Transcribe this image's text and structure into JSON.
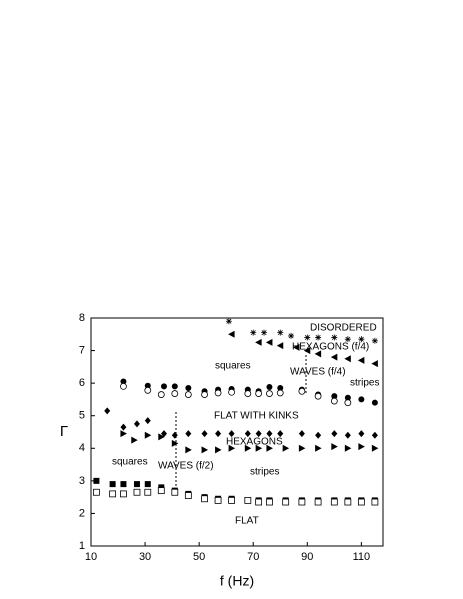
{
  "chart_data": {
    "type": "scatter",
    "x_label": "f (Hz)",
    "y_label": "Γ",
    "xlim": [
      10,
      118
    ],
    "ylim": [
      1,
      8
    ],
    "xticks": [
      10,
      30,
      50,
      70,
      90,
      110
    ],
    "yticks": [
      1,
      2,
      3,
      4,
      5,
      6,
      7,
      8
    ],
    "annotations": [
      "DISORDERED",
      "HEXAGONS (f/4)",
      "squares",
      "WAVES (f/4)",
      "stripes",
      "FLAT WITH KINKS",
      "HEXAGONS",
      "squares",
      "WAVES (f/2)",
      "stripes",
      "FLAT"
    ],
    "series": [
      {
        "marker": "filled-circle",
        "color": "#000000",
        "x": [
          22,
          31,
          37,
          41,
          46,
          52,
          57,
          62,
          68,
          72,
          76,
          80,
          88,
          94,
          100,
          105,
          110,
          115
        ],
        "values": [
          6.05,
          5.92,
          5.9,
          5.9,
          5.85,
          5.75,
          5.8,
          5.82,
          5.8,
          5.75,
          5.88,
          5.85,
          5.8,
          5.65,
          5.6,
          5.55,
          5.5,
          5.4
        ]
      },
      {
        "marker": "open-circle",
        "color": "#000000",
        "x": [
          22,
          31,
          36,
          41,
          46,
          52,
          57,
          62,
          68,
          72,
          76,
          80,
          88,
          94,
          100,
          105
        ],
        "values": [
          5.9,
          5.78,
          5.65,
          5.68,
          5.65,
          5.65,
          5.7,
          5.72,
          5.68,
          5.68,
          5.68,
          5.7,
          5.75,
          5.6,
          5.45,
          5.4
        ]
      },
      {
        "marker": "diamond",
        "color": "#000000",
        "x": [
          16,
          22,
          27,
          31,
          37,
          41,
          46,
          52,
          57,
          62,
          68,
          72,
          76,
          80,
          88,
          94,
          100,
          105,
          110,
          115
        ],
        "values": [
          5.15,
          4.65,
          4.75,
          4.85,
          4.45,
          4.4,
          4.45,
          4.45,
          4.45,
          4.45,
          4.45,
          4.45,
          4.45,
          4.45,
          4.45,
          4.4,
          4.45,
          4.4,
          4.45,
          4.4
        ]
      },
      {
        "marker": "right-triangle",
        "color": "#000000",
        "x": [
          22,
          26,
          31,
          36,
          41,
          46,
          52,
          57,
          62,
          68,
          72,
          76,
          82,
          88,
          94,
          100,
          105,
          110,
          115
        ],
        "values": [
          4.45,
          4.25,
          4.4,
          4.35,
          4.15,
          3.95,
          3.95,
          3.95,
          4.0,
          4.0,
          4.0,
          4.0,
          4.0,
          4.0,
          4.0,
          4.05,
          4.0,
          4.05,
          4.0
        ]
      },
      {
        "marker": "left-triangle",
        "color": "#000000",
        "x": [
          62,
          72,
          76,
          80,
          86,
          90,
          94,
          100,
          105,
          110,
          115
        ],
        "values": [
          7.5,
          7.25,
          7.25,
          7.15,
          7.1,
          7.0,
          6.9,
          6.8,
          6.75,
          6.7,
          6.6
        ]
      },
      {
        "marker": "asterisk",
        "color": "#000000",
        "x": [
          61,
          70,
          74,
          80,
          84,
          90,
          94,
          100,
          105,
          110,
          115
        ],
        "values": [
          7.9,
          7.55,
          7.55,
          7.55,
          7.45,
          7.4,
          7.4,
          7.4,
          7.35,
          7.35,
          7.3
        ]
      },
      {
        "marker": "filled-square",
        "color": "#000000",
        "x": [
          12,
          18,
          22,
          27,
          31,
          36,
          41,
          46,
          52,
          57,
          62,
          68,
          72,
          76,
          82,
          88,
          94,
          100,
          105,
          110,
          115
        ],
        "values": [
          3.0,
          2.9,
          2.9,
          2.9,
          2.9,
          2.8,
          2.7,
          2.6,
          2.5,
          2.45,
          2.45,
          2.4,
          2.4,
          2.4,
          2.4,
          2.4,
          2.4,
          2.4,
          2.4,
          2.4,
          2.4
        ]
      },
      {
        "marker": "open-square",
        "color": "#000000",
        "x": [
          12,
          18,
          22,
          27,
          31,
          36,
          41,
          46,
          52,
          57,
          62,
          68,
          72,
          76,
          82,
          88,
          94,
          100,
          105,
          110,
          115
        ],
        "values": [
          2.65,
          2.6,
          2.6,
          2.65,
          2.65,
          2.7,
          2.65,
          2.55,
          2.45,
          2.4,
          2.4,
          2.4,
          2.35,
          2.35,
          2.35,
          2.35,
          2.35,
          2.35,
          2.35,
          2.35,
          2.35
        ]
      }
    ]
  }
}
